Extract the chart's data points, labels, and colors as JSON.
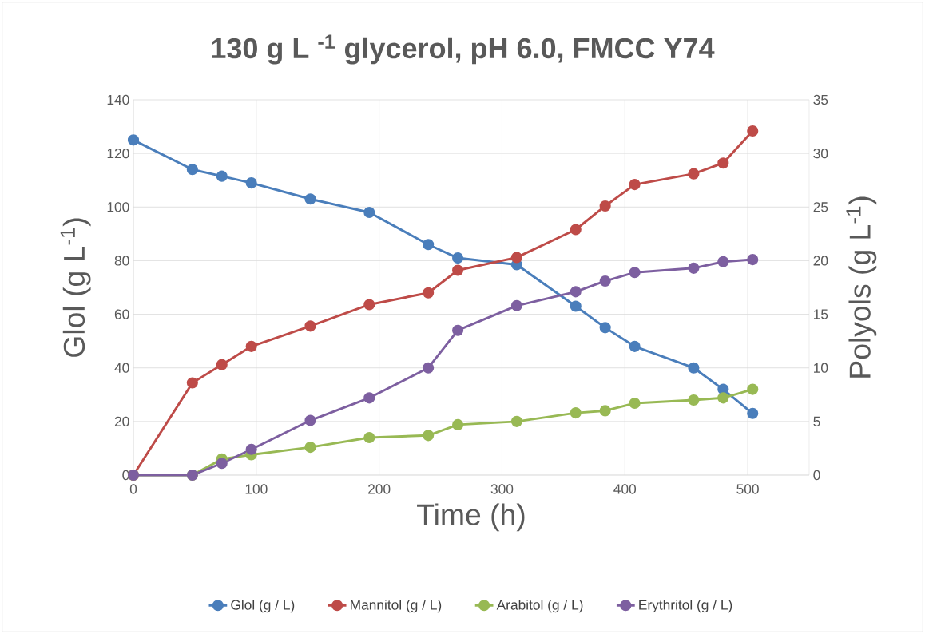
{
  "chart_data": {
    "type": "line",
    "title": "130 g  L $^{-1}$ glycerol, pH 6.0, FMCC Y74",
    "xlabel": "Time (h)",
    "ylabel": "Glol (g L$^{-1}$)",
    "y2label": "Polyols  (g L$^{-1}$)",
    "x": [
      0,
      48,
      72,
      96,
      144,
      192,
      240,
      264,
      312,
      360,
      384,
      408,
      456,
      480,
      504
    ],
    "series": [
      {
        "name": "Glol (g / L)",
        "color": "#4a7ebb",
        "values": [
          125,
          114,
          111.5,
          109,
          103,
          98,
          86,
          81,
          78.5,
          63,
          55,
          48,
          40,
          32,
          23
        ]
      },
      {
        "name": "Mannitol (g / L)",
        "color": "#be4b48",
        "axis": "y2",
        "values": [
          0,
          8.6,
          10.3,
          12.0,
          13.9,
          15.9,
          17.0,
          19.1,
          20.3,
          22.9,
          25.1,
          27.1,
          28.1,
          29.1,
          32.1
        ]
      },
      {
        "name": "Arabitol (g / L)",
        "color": "#98b954",
        "axis": "y2",
        "values": [
          0,
          0,
          1.5,
          1.9,
          2.6,
          3.5,
          3.7,
          4.7,
          5.0,
          5.8,
          6.0,
          6.7,
          7.0,
          7.2,
          8.0
        ]
      },
      {
        "name": "Erythritol (g / L)",
        "color": "#7d5fa0",
        "axis": "y2",
        "values": [
          0,
          0,
          1.1,
          2.4,
          5.1,
          7.2,
          10.0,
          13.5,
          15.8,
          17.1,
          18.1,
          18.9,
          19.3,
          19.9,
          20.1
        ]
      }
    ],
    "xlim": [
      0,
      550
    ],
    "xticks": [
      0,
      100,
      200,
      300,
      400,
      500
    ],
    "ylim": [
      0,
      140
    ],
    "yticks": [
      0,
      20,
      40,
      60,
      80,
      100,
      120,
      140
    ],
    "y2lim": [
      0,
      35
    ],
    "y2ticks": [
      0,
      5,
      10,
      15,
      20,
      25,
      30,
      35
    ],
    "grid": true,
    "legend": "bottom",
    "marker": "circle",
    "line_style": "solid"
  }
}
